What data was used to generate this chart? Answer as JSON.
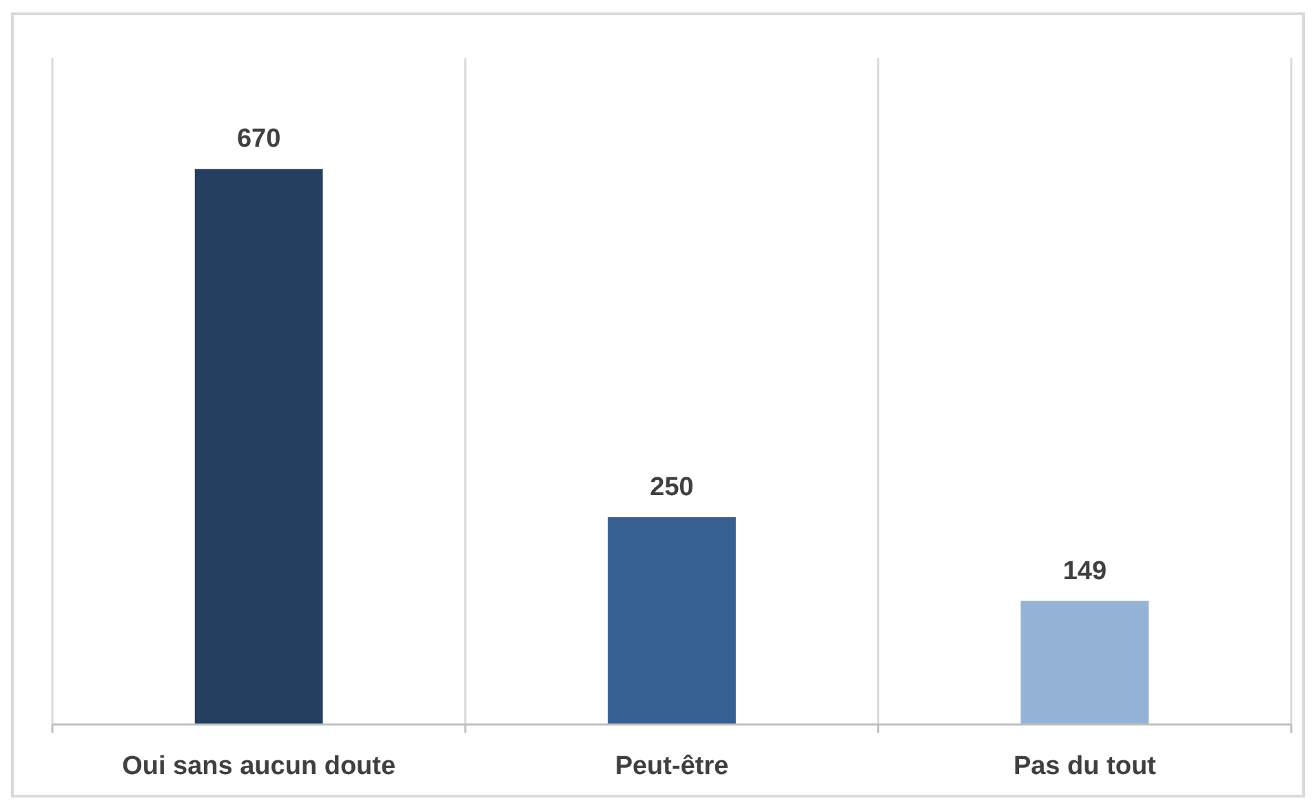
{
  "chart_data": {
    "type": "bar",
    "categories": [
      "Oui sans aucun doute",
      "Peut-être",
      "Pas du tout"
    ],
    "values": [
      670,
      250,
      149
    ],
    "colors": [
      "#243f60",
      "#35608f",
      "#95b3d7"
    ],
    "data_labels": true,
    "grid": "x"
  }
}
